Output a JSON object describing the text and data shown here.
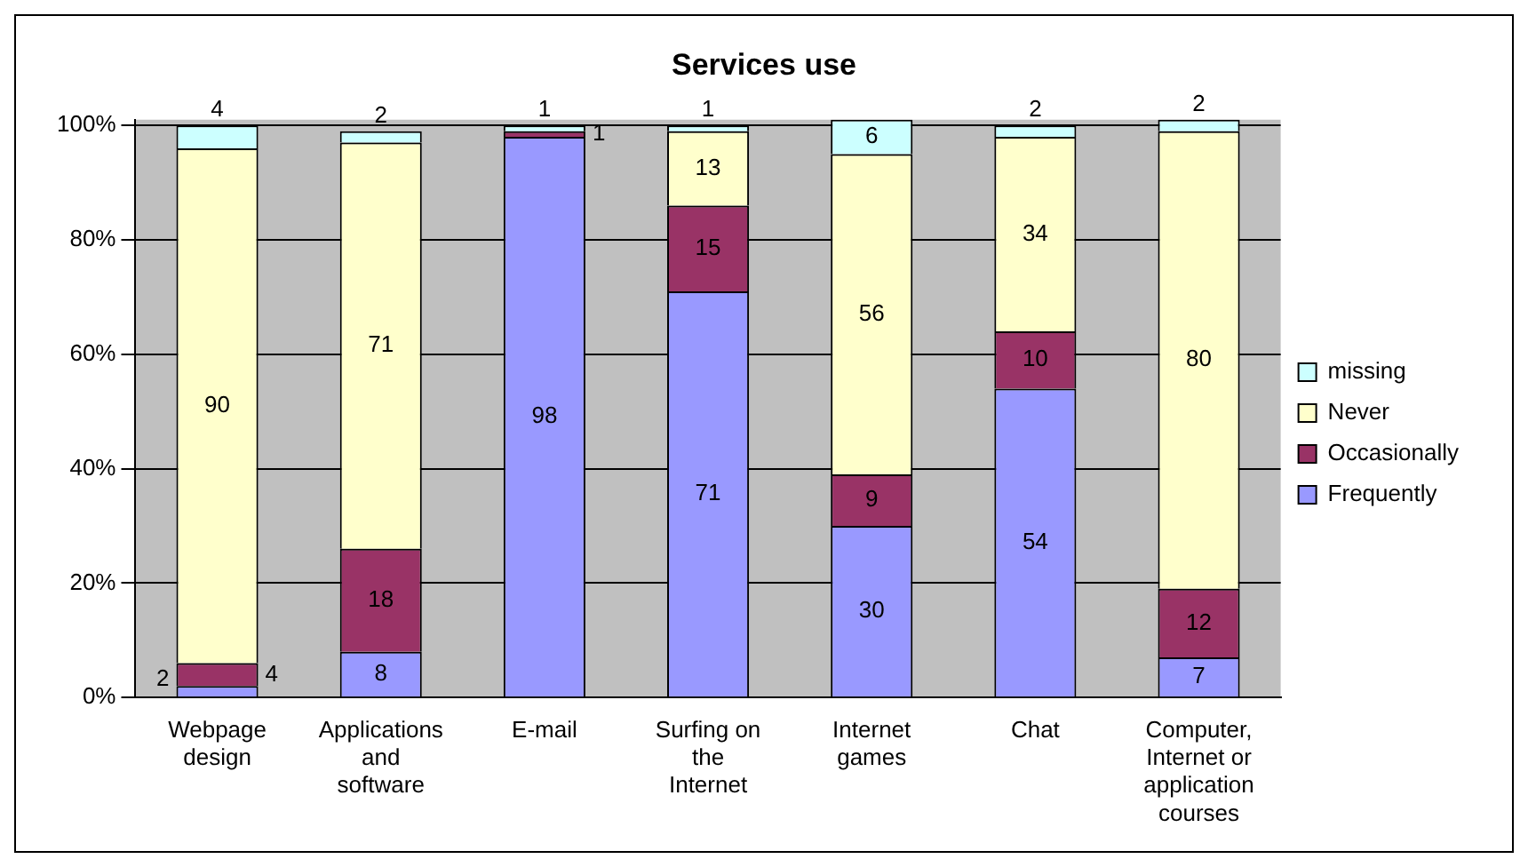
{
  "chart_data": {
    "type": "bar",
    "title": "Services use",
    "stacked": true,
    "categories": [
      "Webpage design",
      "Applications and software",
      "E-mail",
      "Surfing on the Internet",
      "Internet games",
      "Chat",
      "Computer, Internet or application courses"
    ],
    "series": [
      {
        "name": "Frequently",
        "color": "#9999ff",
        "values": [
          2,
          8,
          98,
          71,
          30,
          54,
          7
        ]
      },
      {
        "name": "Occasionally",
        "color": "#993366",
        "values": [
          4,
          18,
          1,
          15,
          9,
          10,
          12
        ]
      },
      {
        "name": "Never",
        "color": "#ffffcc",
        "values": [
          90,
          71,
          null,
          13,
          56,
          34,
          80
        ]
      },
      {
        "name": "missing",
        "color": "#ccffff",
        "values": [
          4,
          2,
          1,
          1,
          6,
          2,
          2
        ]
      }
    ],
    "ylim": [
      0,
      101
    ],
    "yticks": [
      {
        "value": 0,
        "label": "0%"
      },
      {
        "value": 20,
        "label": "20%"
      },
      {
        "value": 40,
        "label": "40%"
      },
      {
        "value": 60,
        "label": "60%"
      },
      {
        "value": 80,
        "label": "80%"
      },
      {
        "value": 100,
        "label": "100%"
      }
    ],
    "grid": "y",
    "legend": "right",
    "data_labels": true
  }
}
